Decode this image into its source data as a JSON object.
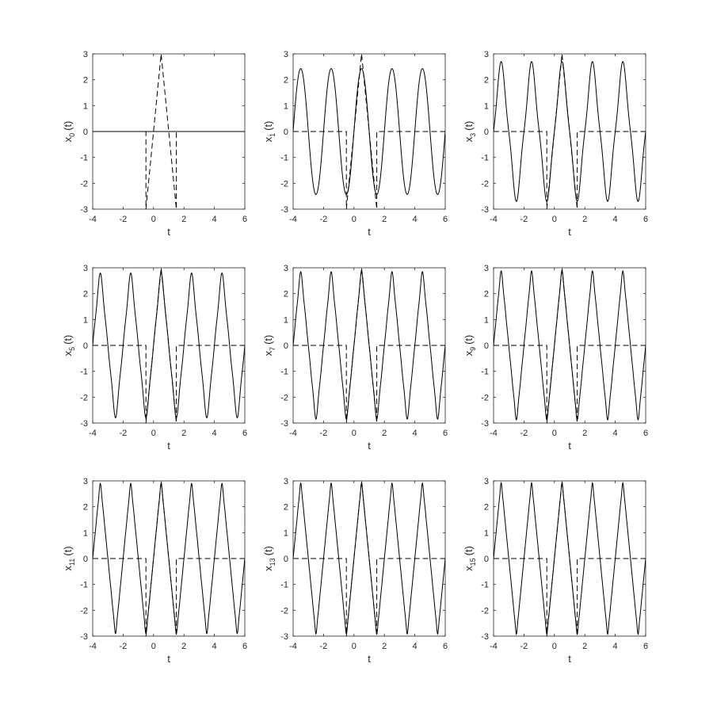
{
  "chart_data": [
    {
      "type": "line",
      "order": 0,
      "ylabel_base": "x",
      "ylabel_sub": "0",
      "ylabel_tail": "(t)",
      "xlabel": "t",
      "xlim": [
        -4,
        6
      ],
      "ylim": [
        -3,
        3
      ],
      "xticks": [
        -4,
        -2,
        0,
        2,
        4,
        6
      ],
      "yticks": [
        -3,
        -2,
        -1,
        0,
        1,
        2,
        3
      ],
      "xtick_labels": [
        "-4",
        "-2",
        "0",
        "2",
        "4",
        "6"
      ],
      "ytick_labels": [
        "-3",
        "-2",
        "-1",
        "0",
        "1",
        "2",
        "3"
      ],
      "target_signal": {
        "period": 10,
        "pulse_start": -0.5,
        "pulse_end": 1.5,
        "peak_t": 0.5,
        "peak_value": 3
      }
    },
    {
      "type": "line",
      "order": 1,
      "ylabel_base": "x",
      "ylabel_sub": "1",
      "ylabel_tail": "(t)",
      "xlabel": "t",
      "xlim": [
        -4,
        6
      ],
      "ylim": [
        -3,
        3
      ],
      "xticks": [
        -4,
        -2,
        0,
        2,
        4,
        6
      ],
      "yticks": [
        -3,
        -2,
        -1,
        0,
        1,
        2,
        3
      ],
      "xtick_labels": [
        "-4",
        "-2",
        "0",
        "2",
        "4",
        "6"
      ],
      "ytick_labels": [
        "-3",
        "-2",
        "-1",
        "0",
        "1",
        "2",
        "3"
      ],
      "target_signal": {
        "period": 10,
        "pulse_start": -0.5,
        "pulse_end": 1.5,
        "peak_t": 0.5,
        "peak_value": 3
      }
    },
    {
      "type": "line",
      "order": 3,
      "ylabel_base": "x",
      "ylabel_sub": "3",
      "ylabel_tail": "(t)",
      "xlabel": "t",
      "xlim": [
        -4,
        6
      ],
      "ylim": [
        -3,
        3
      ],
      "xticks": [
        -4,
        -2,
        0,
        2,
        4,
        6
      ],
      "yticks": [
        -3,
        -2,
        -1,
        0,
        1,
        2,
        3
      ],
      "xtick_labels": [
        "-4",
        "-2",
        "0",
        "2",
        "4",
        "6"
      ],
      "ytick_labels": [
        "-3",
        "-2",
        "-1",
        "0",
        "1",
        "2",
        "3"
      ],
      "target_signal": {
        "period": 10,
        "pulse_start": -0.5,
        "pulse_end": 1.5,
        "peak_t": 0.5,
        "peak_value": 3
      }
    },
    {
      "type": "line",
      "order": 5,
      "ylabel_base": "x",
      "ylabel_sub": "5",
      "ylabel_tail": "(t)",
      "xlabel": "t",
      "xlim": [
        -4,
        6
      ],
      "ylim": [
        -3,
        3
      ],
      "xticks": [
        -4,
        -2,
        0,
        2,
        4,
        6
      ],
      "yticks": [
        -3,
        -2,
        -1,
        0,
        1,
        2,
        3
      ],
      "xtick_labels": [
        "-4",
        "-2",
        "0",
        "2",
        "4",
        "6"
      ],
      "ytick_labels": [
        "-3",
        "-2",
        "-1",
        "0",
        "1",
        "2",
        "3"
      ],
      "target_signal": {
        "period": 10,
        "pulse_start": -0.5,
        "pulse_end": 1.5,
        "peak_t": 0.5,
        "peak_value": 3
      }
    },
    {
      "type": "line",
      "order": 7,
      "ylabel_base": "x",
      "ylabel_sub": "7",
      "ylabel_tail": "(t)",
      "xlabel": "t",
      "xlim": [
        -4,
        6
      ],
      "ylim": [
        -3,
        3
      ],
      "xticks": [
        -4,
        -2,
        0,
        2,
        4,
        6
      ],
      "yticks": [
        -3,
        -2,
        -1,
        0,
        1,
        2,
        3
      ],
      "xtick_labels": [
        "-4",
        "-2",
        "0",
        "2",
        "4",
        "6"
      ],
      "ytick_labels": [
        "-3",
        "-2",
        "-1",
        "0",
        "1",
        "2",
        "3"
      ],
      "target_signal": {
        "period": 10,
        "pulse_start": -0.5,
        "pulse_end": 1.5,
        "peak_t": 0.5,
        "peak_value": 3
      }
    },
    {
      "type": "line",
      "order": 9,
      "ylabel_base": "x",
      "ylabel_sub": "9",
      "ylabel_tail": "(t)",
      "xlabel": "t",
      "xlim": [
        -4,
        6
      ],
      "ylim": [
        -3,
        3
      ],
      "xticks": [
        -4,
        -2,
        0,
        2,
        4,
        6
      ],
      "yticks": [
        -3,
        -2,
        -1,
        0,
        1,
        2,
        3
      ],
      "xtick_labels": [
        "-4",
        "-2",
        "0",
        "2",
        "4",
        "6"
      ],
      "ytick_labels": [
        "-3",
        "-2",
        "-1",
        "0",
        "1",
        "2",
        "3"
      ],
      "target_signal": {
        "period": 10,
        "pulse_start": -0.5,
        "pulse_end": 1.5,
        "peak_t": 0.5,
        "peak_value": 3
      }
    },
    {
      "type": "line",
      "order": 11,
      "ylabel_base": "x",
      "ylabel_sub": "11",
      "ylabel_tail": "(t)",
      "xlabel": "t",
      "xlim": [
        -4,
        6
      ],
      "ylim": [
        -3,
        3
      ],
      "xticks": [
        -4,
        -2,
        0,
        2,
        4,
        6
      ],
      "yticks": [
        -3,
        -2,
        -1,
        0,
        1,
        2,
        3
      ],
      "xtick_labels": [
        "-4",
        "-2",
        "0",
        "2",
        "4",
        "6"
      ],
      "ytick_labels": [
        "-3",
        "-2",
        "-1",
        "0",
        "1",
        "2",
        "3"
      ],
      "target_signal": {
        "period": 10,
        "pulse_start": -0.5,
        "pulse_end": 1.5,
        "peak_t": 0.5,
        "peak_value": 3
      }
    },
    {
      "type": "line",
      "order": 13,
      "ylabel_base": "x",
      "ylabel_sub": "13",
      "ylabel_tail": "(t)",
      "xlabel": "t",
      "xlim": [
        -4,
        6
      ],
      "ylim": [
        -3,
        3
      ],
      "xticks": [
        -4,
        -2,
        0,
        2,
        4,
        6
      ],
      "yticks": [
        -3,
        -2,
        -1,
        0,
        1,
        2,
        3
      ],
      "xtick_labels": [
        "-4",
        "-2",
        "0",
        "2",
        "4",
        "6"
      ],
      "ytick_labels": [
        "-3",
        "-2",
        "-1",
        "0",
        "1",
        "2",
        "3"
      ],
      "target_signal": {
        "period": 10,
        "pulse_start": -0.5,
        "pulse_end": 1.5,
        "peak_t": 0.5,
        "peak_value": 3
      }
    },
    {
      "type": "line",
      "order": 15,
      "ylabel_base": "x",
      "ylabel_sub": "15",
      "ylabel_tail": "(t)",
      "xlabel": "t",
      "xlim": [
        -4,
        6
      ],
      "ylim": [
        -3,
        3
      ],
      "xticks": [
        -4,
        -2,
        0,
        2,
        4,
        6
      ],
      "yticks": [
        -3,
        -2,
        -1,
        0,
        1,
        2,
        3
      ],
      "xtick_labels": [
        "-4",
        "-2",
        "0",
        "2",
        "4",
        "6"
      ],
      "ytick_labels": [
        "-3",
        "-2",
        "-1",
        "0",
        "1",
        "2",
        "3"
      ],
      "target_signal": {
        "period": 10,
        "pulse_start": -0.5,
        "pulse_end": 1.5,
        "peak_t": 0.5,
        "peak_value": 3
      }
    }
  ],
  "colors": {
    "line": "#000000",
    "axes": "#262626",
    "background": "#ffffff"
  }
}
